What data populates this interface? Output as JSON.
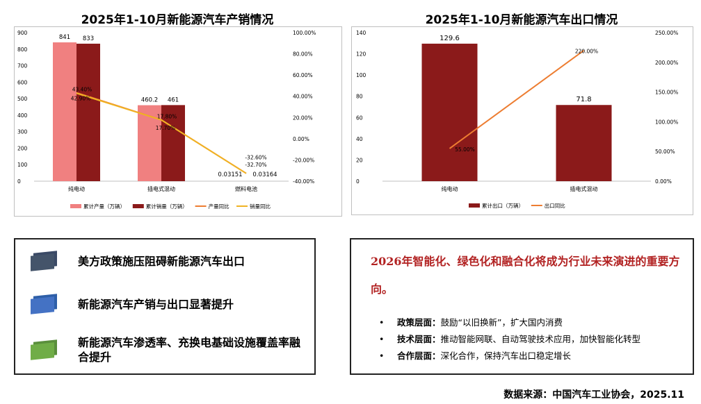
{
  "chart_data": [
    {
      "type": "bar",
      "title": "2025年1-10月新能源汽车产销情况",
      "categories": [
        "纯电动",
        "插电式混动",
        "燃料电池"
      ],
      "y_left_ticks": [
        "0",
        "100",
        "200",
        "300",
        "400",
        "500",
        "600",
        "700",
        "800",
        "900"
      ],
      "y_left_range": [
        0,
        900
      ],
      "y_right_ticks": [
        "-40.00%",
        "-20.00%",
        "0.00%",
        "20.00%",
        "40.00%",
        "60.00%",
        "80.00%",
        "100.00%"
      ],
      "y_right_range": [
        -40,
        100
      ],
      "series": [
        {
          "name": "累计产量（万辆）",
          "kind": "bar",
          "axis": "left",
          "color": "#f08080",
          "values": [
            841,
            460.2,
            0.03151
          ],
          "labels": [
            "841",
            "460.2",
            "0.03151"
          ]
        },
        {
          "name": "累计销量（万辆）",
          "kind": "bar",
          "axis": "left",
          "color": "#8b1a1a",
          "values": [
            833,
            461,
            0.03164
          ],
          "labels": [
            "833",
            "461",
            "0.03164"
          ]
        },
        {
          "name": "产量同比",
          "kind": "line",
          "axis": "right",
          "color": "#ed7d31",
          "values": [
            43.4,
            17.8,
            -32.6
          ],
          "labels": [
            "43.40%",
            "17.80%",
            "-32.60%"
          ]
        },
        {
          "name": "销量同比",
          "kind": "line",
          "axis": "right",
          "color": "#f0b323",
          "values": [
            42.9,
            17.7,
            -32.7
          ],
          "labels": [
            "42.90%",
            "17.70%",
            "-32.70%"
          ]
        }
      ],
      "legend_position": "bottom",
      "grid": false
    },
    {
      "type": "bar",
      "title": "2025年1-10月新能源汽车出口情况",
      "categories": [
        "纯电动",
        "插电式混动"
      ],
      "y_left_ticks": [
        "0",
        "20",
        "40",
        "60",
        "80",
        "100",
        "120",
        "140"
      ],
      "y_left_range": [
        0,
        140
      ],
      "y_right_ticks": [
        "0.00%",
        "50.00%",
        "100.00%",
        "150.00%",
        "200.00%",
        "250.00%"
      ],
      "y_right_range": [
        0,
        250
      ],
      "series": [
        {
          "name": "累计出口（万辆）",
          "kind": "bar",
          "axis": "left",
          "color": "#8b1a1a",
          "values": [
            129.6,
            71.8
          ],
          "labels": [
            "129.6",
            "71.8"
          ]
        },
        {
          "name": "出口同比",
          "kind": "line",
          "axis": "right",
          "color": "#ed7d31",
          "values": [
            55.0,
            220.0
          ],
          "labels": [
            "55.00%",
            "220.00%"
          ]
        }
      ],
      "legend_position": "bottom",
      "grid": false
    }
  ],
  "key_points": [
    {
      "text": "美方政策施压阻碍新能源汽车出口",
      "color_back": "#3b4a66",
      "color_front": "#44546a"
    },
    {
      "text": "新能源汽车产销与出口显著提升",
      "color_back": "#2e5fa8",
      "color_front": "#4472c4"
    },
    {
      "text": "新能源汽车渗透率、充换电基础设施覆盖率融合提升",
      "color_back": "#5a8f3c",
      "color_front": "#70ad47"
    }
  ],
  "trend": {
    "title": "2026年智能化、绿色化和融合化将成为行业未来演进的重要方向。",
    "bullets": [
      {
        "key": "政策层面：",
        "text": "鼓励“以旧换新”，扩大国内消费"
      },
      {
        "key": "技术层面：",
        "text": "推动智能网联、自动驾驶技术应用，加快智能化转型"
      },
      {
        "key": "合作层面：",
        "text": "深化合作，保持汽车出口稳定增长"
      }
    ],
    "bullet_symbol": "•"
  },
  "source": "数据来源：中国汽车工业协会，2025.11"
}
